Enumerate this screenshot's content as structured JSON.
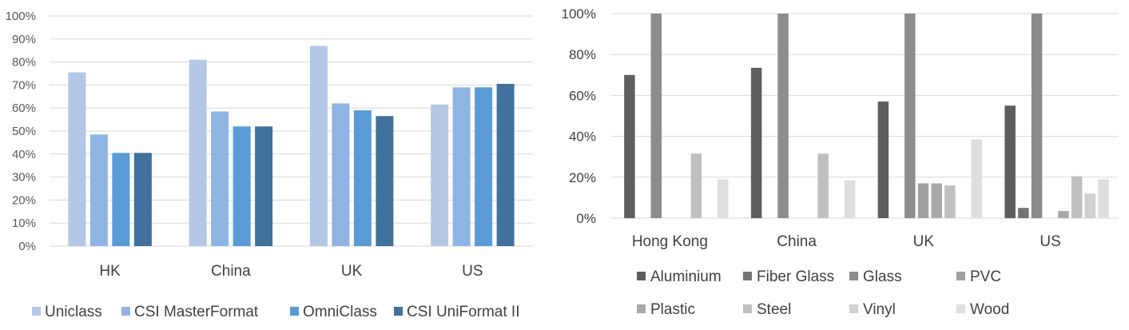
{
  "chart_data": [
    {
      "type": "bar",
      "categories": [
        "HK",
        "China",
        "UK",
        "US"
      ],
      "series": [
        {
          "name": "Uniclass",
          "values": [
            75.5,
            81,
            87,
            61.5
          ]
        },
        {
          "name": "CSI MasterFormat",
          "values": [
            48.5,
            58.5,
            62,
            69
          ]
        },
        {
          "name": "OmniClass",
          "values": [
            40.5,
            52,
            59,
            69
          ]
        },
        {
          "name": "CSI UniFormat II",
          "values": [
            40.5,
            52,
            56.5,
            70.5
          ]
        }
      ],
      "colors": [
        "#b4c7e7",
        "#8eb4e3",
        "#5b9bd5",
        "#41719c"
      ],
      "yticks": [
        "0%",
        "10%",
        "20%",
        "30%",
        "40%",
        "50%",
        "60%",
        "70%",
        "80%",
        "90%",
        "100%"
      ],
      "ylim": [
        0,
        100
      ],
      "grid": true,
      "legend": "bottom",
      "title": "",
      "xlabel": "",
      "ylabel": ""
    },
    {
      "type": "bar",
      "categories": [
        "Hong Kong",
        "China",
        "UK",
        "US"
      ],
      "series": [
        {
          "name": "Aluminium",
          "values": [
            70,
            73.5,
            57,
            55
          ]
        },
        {
          "name": "Fiber Glass",
          "values": [
            0,
            0,
            0,
            5
          ]
        },
        {
          "name": "Glass",
          "values": [
            100,
            100,
            100,
            100
          ]
        },
        {
          "name": "PVC",
          "values": [
            0,
            0,
            17,
            0
          ]
        },
        {
          "name": "Plastic",
          "values": [
            0,
            0,
            17,
            3.5
          ]
        },
        {
          "name": "Steel",
          "values": [
            31.5,
            31.5,
            16,
            20.5
          ]
        },
        {
          "name": "Vinyl",
          "values": [
            0,
            0,
            0,
            12
          ]
        },
        {
          "name": "Wood",
          "values": [
            19,
            18.5,
            38.5,
            19
          ]
        }
      ],
      "colors": [
        "#5e5e5e",
        "#747474",
        "#8c8c8c",
        "#a0a0a0",
        "#a8a8a8",
        "#c0c0c0",
        "#d0d0d0",
        "#dedede"
      ],
      "yticks": [
        "0%",
        "20%",
        "40%",
        "60%",
        "80%",
        "100%"
      ],
      "ylim": [
        0,
        100
      ],
      "grid": true,
      "legend": "bottom",
      "title": "",
      "xlabel": "",
      "ylabel": ""
    }
  ]
}
